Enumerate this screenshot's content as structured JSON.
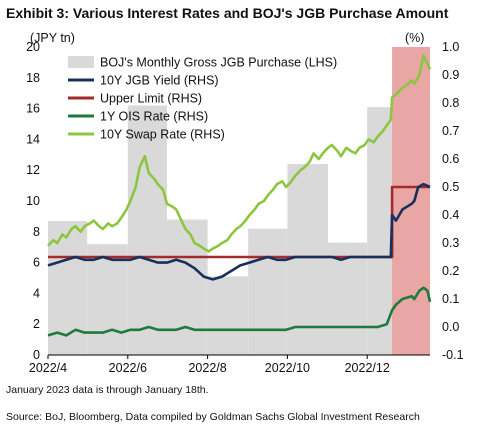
{
  "chart_data": {
    "type": "bar+line",
    "title": "Exhibit 3: Various Interest Rates and BOJ's JGB Purchase Amount",
    "left_unit": "(JPY tn)",
    "right_unit": "(%)",
    "left_ylim": [
      0,
      20
    ],
    "right_ylim": [
      -0.1,
      1.0
    ],
    "left_ticks": [
      "0",
      "2",
      "4",
      "6",
      "8",
      "10",
      "12",
      "14",
      "16",
      "18",
      "20"
    ],
    "right_ticks": [
      "-0.1",
      "0.0",
      "0.1",
      "0.2",
      "0.3",
      "0.4",
      "0.5",
      "0.6",
      "0.7",
      "0.8",
      "0.9",
      "1.0"
    ],
    "x_ticks": [
      "2022/4",
      "2022/6",
      "2022/8",
      "2022/10",
      "2022/12"
    ],
    "x_tick_dates": [
      "2022-04-01",
      "2022-06-01",
      "2022-08-01",
      "2022-10-01",
      "2022-12-01"
    ],
    "x_range": [
      "2022-04-01",
      "2023-01-18"
    ],
    "shaded_period": [
      "2022-12-20",
      "2023-01-18"
    ],
    "shaded_color": "#e8a7a4",
    "legend_position": "top-left",
    "legend": [
      {
        "label": "BOJ's Monthly Gross JGB Purchase (LHS)",
        "kind": "box",
        "color": "#d9d9d9"
      },
      {
        "label": "10Y JGB Yield (RHS)",
        "kind": "line",
        "color": "#17305c"
      },
      {
        "label": "Upper Limit (RHS)",
        "kind": "line",
        "color": "#a52a2a"
      },
      {
        "label": "1Y OIS Rate (RHS)",
        "kind": "line",
        "color": "#1f7a3d"
      },
      {
        "label": "10Y Swap Rate (RHS)",
        "kind": "line",
        "color": "#8cc63f"
      }
    ],
    "bars": {
      "name": "BOJ's Monthly Gross JGB Purchase (LHS)",
      "months": [
        "2022-04",
        "2022-05",
        "2022-06",
        "2022-07",
        "2022-08",
        "2022-09",
        "2022-10",
        "2022-11",
        "2022-12",
        "2023-01"
      ],
      "values": [
        8.7,
        7.2,
        16.2,
        8.8,
        5.1,
        8.2,
        12.4,
        7.3,
        16.1,
        18.0
      ]
    },
    "series": [
      {
        "name": "10Y JGB Yield (RHS)",
        "color": "#17305c",
        "points": [
          [
            "2022-04-01",
            0.22
          ],
          [
            "2022-04-08",
            0.23
          ],
          [
            "2022-04-15",
            0.24
          ],
          [
            "2022-04-22",
            0.25
          ],
          [
            "2022-04-29",
            0.24
          ],
          [
            "2022-05-06",
            0.24
          ],
          [
            "2022-05-13",
            0.25
          ],
          [
            "2022-05-20",
            0.24
          ],
          [
            "2022-05-27",
            0.24
          ],
          [
            "2022-06-03",
            0.24
          ],
          [
            "2022-06-10",
            0.25
          ],
          [
            "2022-06-17",
            0.24
          ],
          [
            "2022-06-24",
            0.23
          ],
          [
            "2022-07-01",
            0.23
          ],
          [
            "2022-07-08",
            0.24
          ],
          [
            "2022-07-15",
            0.23
          ],
          [
            "2022-07-22",
            0.21
          ],
          [
            "2022-07-29",
            0.18
          ],
          [
            "2022-08-05",
            0.17
          ],
          [
            "2022-08-12",
            0.18
          ],
          [
            "2022-08-19",
            0.2
          ],
          [
            "2022-08-26",
            0.22
          ],
          [
            "2022-09-02",
            0.23
          ],
          [
            "2022-09-09",
            0.24
          ],
          [
            "2022-09-16",
            0.25
          ],
          [
            "2022-09-23",
            0.24
          ],
          [
            "2022-09-30",
            0.24
          ],
          [
            "2022-10-07",
            0.25
          ],
          [
            "2022-10-14",
            0.25
          ],
          [
            "2022-10-21",
            0.25
          ],
          [
            "2022-10-28",
            0.25
          ],
          [
            "2022-11-04",
            0.25
          ],
          [
            "2022-11-11",
            0.24
          ],
          [
            "2022-11-18",
            0.25
          ],
          [
            "2022-11-25",
            0.25
          ],
          [
            "2022-12-02",
            0.25
          ],
          [
            "2022-12-09",
            0.25
          ],
          [
            "2022-12-16",
            0.25
          ],
          [
            "2022-12-19",
            0.25
          ],
          [
            "2022-12-20",
            0.4
          ],
          [
            "2022-12-23",
            0.38
          ],
          [
            "2022-12-28",
            0.42
          ],
          [
            "2023-01-04",
            0.44
          ],
          [
            "2023-01-06",
            0.45
          ],
          [
            "2023-01-09",
            0.5
          ],
          [
            "2023-01-13",
            0.51
          ],
          [
            "2023-01-18",
            0.5
          ]
        ]
      },
      {
        "name": "Upper Limit (RHS)",
        "color": "#a52a2a",
        "points": [
          [
            "2022-04-01",
            0.25
          ],
          [
            "2022-12-20",
            0.25
          ],
          [
            "2022-12-20",
            0.5
          ],
          [
            "2023-01-18",
            0.5
          ]
        ]
      },
      {
        "name": "1Y OIS Rate (RHS)",
        "color": "#1f7a3d",
        "points": [
          [
            "2022-04-01",
            -0.03
          ],
          [
            "2022-04-08",
            -0.02
          ],
          [
            "2022-04-15",
            -0.03
          ],
          [
            "2022-04-22",
            -0.01
          ],
          [
            "2022-04-29",
            -0.02
          ],
          [
            "2022-05-06",
            -0.02
          ],
          [
            "2022-05-13",
            -0.02
          ],
          [
            "2022-05-20",
            -0.01
          ],
          [
            "2022-05-27",
            -0.02
          ],
          [
            "2022-06-03",
            -0.01
          ],
          [
            "2022-06-10",
            -0.01
          ],
          [
            "2022-06-17",
            0.0
          ],
          [
            "2022-06-24",
            -0.01
          ],
          [
            "2022-07-01",
            -0.01
          ],
          [
            "2022-07-08",
            -0.01
          ],
          [
            "2022-07-15",
            0.0
          ],
          [
            "2022-07-22",
            -0.01
          ],
          [
            "2022-07-29",
            -0.01
          ],
          [
            "2022-08-05",
            -0.01
          ],
          [
            "2022-08-12",
            -0.01
          ],
          [
            "2022-08-19",
            -0.01
          ],
          [
            "2022-08-26",
            -0.01
          ],
          [
            "2022-09-02",
            -0.01
          ],
          [
            "2022-09-09",
            -0.01
          ],
          [
            "2022-09-16",
            -0.01
          ],
          [
            "2022-09-23",
            -0.01
          ],
          [
            "2022-09-30",
            -0.01
          ],
          [
            "2022-10-07",
            0.0
          ],
          [
            "2022-10-14",
            0.0
          ],
          [
            "2022-10-21",
            0.0
          ],
          [
            "2022-10-28",
            0.0
          ],
          [
            "2022-11-04",
            0.0
          ],
          [
            "2022-11-11",
            0.0
          ],
          [
            "2022-11-18",
            0.0
          ],
          [
            "2022-11-25",
            0.0
          ],
          [
            "2022-12-02",
            0.0
          ],
          [
            "2022-12-09",
            0.0
          ],
          [
            "2022-12-16",
            0.01
          ],
          [
            "2022-12-20",
            0.06
          ],
          [
            "2022-12-23",
            0.08
          ],
          [
            "2022-12-28",
            0.1
          ],
          [
            "2023-01-04",
            0.11
          ],
          [
            "2023-01-06",
            0.1
          ],
          [
            "2023-01-10",
            0.13
          ],
          [
            "2023-01-13",
            0.14
          ],
          [
            "2023-01-16",
            0.13
          ],
          [
            "2023-01-18",
            0.09
          ]
        ]
      },
      {
        "name": "10Y Swap Rate (RHS)",
        "color": "#8cc63f",
        "points": [
          [
            "2022-04-01",
            0.29
          ],
          [
            "2022-04-05",
            0.31
          ],
          [
            "2022-04-08",
            0.3
          ],
          [
            "2022-04-12",
            0.33
          ],
          [
            "2022-04-15",
            0.32
          ],
          [
            "2022-04-19",
            0.35
          ],
          [
            "2022-04-22",
            0.36
          ],
          [
            "2022-04-26",
            0.34
          ],
          [
            "2022-04-29",
            0.36
          ],
          [
            "2022-05-03",
            0.37
          ],
          [
            "2022-05-06",
            0.38
          ],
          [
            "2022-05-10",
            0.36
          ],
          [
            "2022-05-13",
            0.35
          ],
          [
            "2022-05-17",
            0.37
          ],
          [
            "2022-05-20",
            0.36
          ],
          [
            "2022-05-24",
            0.37
          ],
          [
            "2022-05-27",
            0.39
          ],
          [
            "2022-05-31",
            0.42
          ],
          [
            "2022-06-03",
            0.45
          ],
          [
            "2022-06-07",
            0.5
          ],
          [
            "2022-06-10",
            0.57
          ],
          [
            "2022-06-14",
            0.61
          ],
          [
            "2022-06-17",
            0.55
          ],
          [
            "2022-06-21",
            0.53
          ],
          [
            "2022-06-24",
            0.51
          ],
          [
            "2022-06-28",
            0.49
          ],
          [
            "2022-07-01",
            0.44
          ],
          [
            "2022-07-05",
            0.43
          ],
          [
            "2022-07-08",
            0.42
          ],
          [
            "2022-07-12",
            0.38
          ],
          [
            "2022-07-15",
            0.35
          ],
          [
            "2022-07-19",
            0.33
          ],
          [
            "2022-07-22",
            0.3
          ],
          [
            "2022-07-26",
            0.29
          ],
          [
            "2022-07-29",
            0.28
          ],
          [
            "2022-08-02",
            0.27
          ],
          [
            "2022-08-05",
            0.28
          ],
          [
            "2022-08-09",
            0.29
          ],
          [
            "2022-08-12",
            0.3
          ],
          [
            "2022-08-16",
            0.31
          ],
          [
            "2022-08-19",
            0.33
          ],
          [
            "2022-08-23",
            0.35
          ],
          [
            "2022-08-26",
            0.36
          ],
          [
            "2022-08-30",
            0.38
          ],
          [
            "2022-09-02",
            0.4
          ],
          [
            "2022-09-06",
            0.42
          ],
          [
            "2022-09-09",
            0.44
          ],
          [
            "2022-09-13",
            0.45
          ],
          [
            "2022-09-16",
            0.47
          ],
          [
            "2022-09-20",
            0.49
          ],
          [
            "2022-09-23",
            0.51
          ],
          [
            "2022-09-27",
            0.52
          ],
          [
            "2022-09-30",
            0.5
          ],
          [
            "2022-10-04",
            0.52
          ],
          [
            "2022-10-07",
            0.54
          ],
          [
            "2022-10-11",
            0.56
          ],
          [
            "2022-10-14",
            0.57
          ],
          [
            "2022-10-18",
            0.59
          ],
          [
            "2022-10-21",
            0.62
          ],
          [
            "2022-10-25",
            0.6
          ],
          [
            "2022-10-28",
            0.62
          ],
          [
            "2022-11-01",
            0.64
          ],
          [
            "2022-11-04",
            0.65
          ],
          [
            "2022-11-08",
            0.63
          ],
          [
            "2022-11-11",
            0.61
          ],
          [
            "2022-11-15",
            0.64
          ],
          [
            "2022-11-18",
            0.63
          ],
          [
            "2022-11-22",
            0.62
          ],
          [
            "2022-11-25",
            0.64
          ],
          [
            "2022-11-29",
            0.65
          ],
          [
            "2022-12-02",
            0.67
          ],
          [
            "2022-12-06",
            0.66
          ],
          [
            "2022-12-09",
            0.68
          ],
          [
            "2022-12-13",
            0.7
          ],
          [
            "2022-12-16",
            0.72
          ],
          [
            "2022-12-19",
            0.74
          ],
          [
            "2022-12-20",
            0.82
          ],
          [
            "2022-12-23",
            0.83
          ],
          [
            "2022-12-27",
            0.85
          ],
          [
            "2022-12-30",
            0.86
          ],
          [
            "2023-01-04",
            0.88
          ],
          [
            "2023-01-06",
            0.87
          ],
          [
            "2023-01-10",
            0.9
          ],
          [
            "2023-01-12",
            0.95
          ],
          [
            "2023-01-13",
            0.97
          ],
          [
            "2023-01-16",
            0.94
          ],
          [
            "2023-01-18",
            0.92
          ]
        ]
      }
    ]
  },
  "footnote": "January 2023 data is through January 18th.",
  "source": "Source: BoJ, Bloomberg, Data compiled by Goldman Sachs Global Investment Research"
}
